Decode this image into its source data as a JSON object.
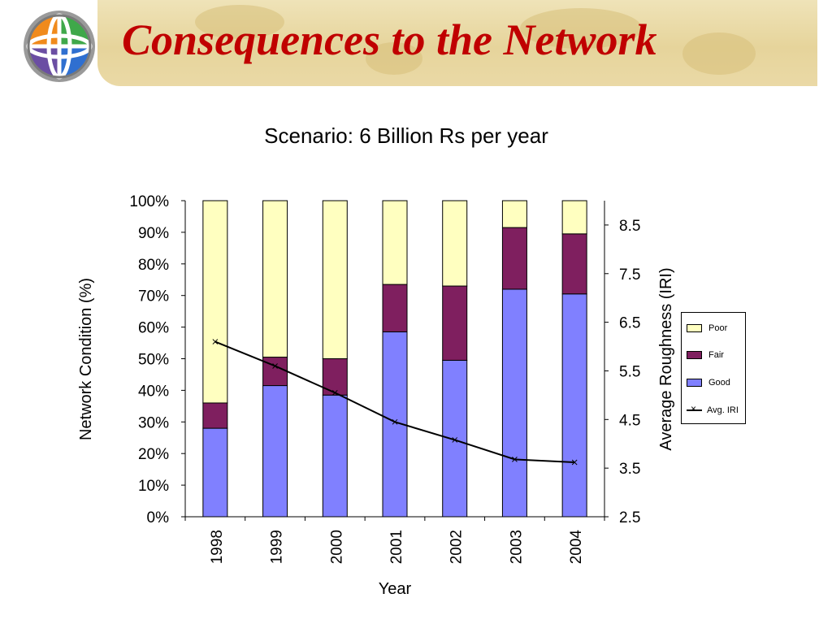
{
  "slide": {
    "title": "Consequences to the Network"
  },
  "chart_data": {
    "type": "bar",
    "stacked": true,
    "title": "Scenario: 6 Billion Rs per year",
    "xlabel": "Year",
    "ylabel": "Network Condition (%)",
    "y2label": "Average Roughness (IRI)",
    "categories": [
      "1998",
      "1999",
      "2000",
      "2001",
      "2002",
      "2003",
      "2004"
    ],
    "ylim": [
      0,
      100
    ],
    "y_ticks": [
      "0%",
      "10%",
      "20%",
      "30%",
      "40%",
      "50%",
      "60%",
      "70%",
      "80%",
      "90%",
      "100%"
    ],
    "y2lim": [
      2.5,
      9
    ],
    "y2_ticks": [
      "2.5",
      "3.5",
      "4.5",
      "5.5",
      "6.5",
      "7.5",
      "8.5"
    ],
    "series": [
      {
        "name": "Good",
        "color": "#8080ff",
        "values": [
          28,
          41.5,
          38.5,
          58.5,
          49.5,
          72,
          70.5
        ]
      },
      {
        "name": "Fair",
        "color": "#7f1f5f",
        "values": [
          8,
          9,
          11.5,
          15,
          23.5,
          19.5,
          19
        ]
      },
      {
        "name": "Poor",
        "color": "#ffffc0",
        "values": [
          64,
          49.5,
          50,
          26.5,
          27,
          8.5,
          10.5
        ]
      }
    ],
    "line_series": {
      "name": "Avg. IRI",
      "axis": "right",
      "color": "#000000",
      "marker": "x",
      "values": [
        6.1,
        5.6,
        5.05,
        4.45,
        4.08,
        3.68,
        3.62
      ]
    },
    "legend": {
      "placement": "right",
      "order": [
        "Poor",
        "Fair",
        "Good",
        "Avg. IRI"
      ]
    },
    "grid": false
  }
}
